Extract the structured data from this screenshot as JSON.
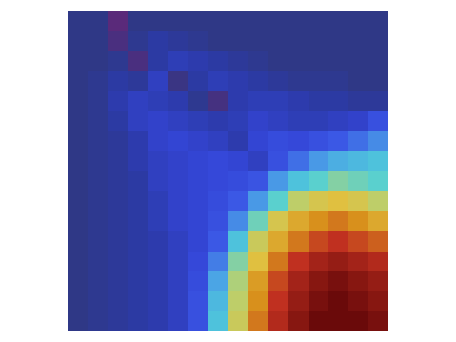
{
  "chart_data": {
    "type": "heatmap",
    "tick_labels": false,
    "grid": false,
    "z": [
      [
        8,
        8,
        0,
        8,
        8,
        8,
        8,
        8,
        8,
        8,
        8,
        8,
        8,
        8,
        8,
        8
      ],
      [
        8,
        8,
        3,
        10,
        14,
        12,
        10,
        8,
        8,
        8,
        8,
        8,
        8,
        8,
        8,
        8
      ],
      [
        8,
        8,
        10,
        3,
        14,
        18,
        16,
        14,
        12,
        10,
        8,
        8,
        8,
        8,
        8,
        8
      ],
      [
        8,
        10,
        14,
        12,
        20,
        6,
        14,
        18,
        16,
        14,
        12,
        10,
        10,
        10,
        8,
        8
      ],
      [
        8,
        10,
        16,
        20,
        18,
        16,
        10,
        4,
        16,
        18,
        18,
        16,
        14,
        14,
        12,
        12
      ],
      [
        8,
        10,
        14,
        20,
        22,
        20,
        18,
        16,
        18,
        22,
        20,
        18,
        18,
        20,
        22,
        30
      ],
      [
        8,
        10,
        12,
        16,
        22,
        24,
        22,
        20,
        16,
        24,
        28,
        26,
        30,
        34,
        38,
        42
      ],
      [
        8,
        10,
        12,
        16,
        20,
        22,
        24,
        26,
        24,
        20,
        30,
        38,
        44,
        48,
        50,
        52
      ],
      [
        8,
        10,
        12,
        14,
        20,
        22,
        24,
        26,
        28,
        32,
        44,
        52,
        56,
        60,
        58,
        56
      ],
      [
        8,
        10,
        12,
        14,
        18,
        22,
        24,
        28,
        34,
        44,
        56,
        66,
        70,
        72,
        70,
        66
      ],
      [
        8,
        10,
        12,
        14,
        18,
        22,
        24,
        30,
        42,
        58,
        70,
        76,
        80,
        82,
        80,
        76
      ],
      [
        8,
        10,
        12,
        14,
        16,
        20,
        24,
        34,
        52,
        68,
        76,
        82,
        86,
        88,
        86,
        84
      ],
      [
        8,
        10,
        12,
        14,
        16,
        20,
        26,
        40,
        60,
        72,
        82,
        88,
        92,
        94,
        92,
        90
      ],
      [
        8,
        10,
        12,
        14,
        16,
        20,
        28,
        46,
        64,
        78,
        86,
        92,
        96,
        98,
        96,
        94
      ],
      [
        8,
        10,
        12,
        14,
        16,
        20,
        30,
        50,
        66,
        80,
        88,
        94,
        98,
        100,
        98,
        96
      ],
      [
        8,
        10,
        12,
        14,
        16,
        20,
        30,
        52,
        68,
        82,
        90,
        96,
        100,
        100,
        100,
        98
      ]
    ]
  }
}
